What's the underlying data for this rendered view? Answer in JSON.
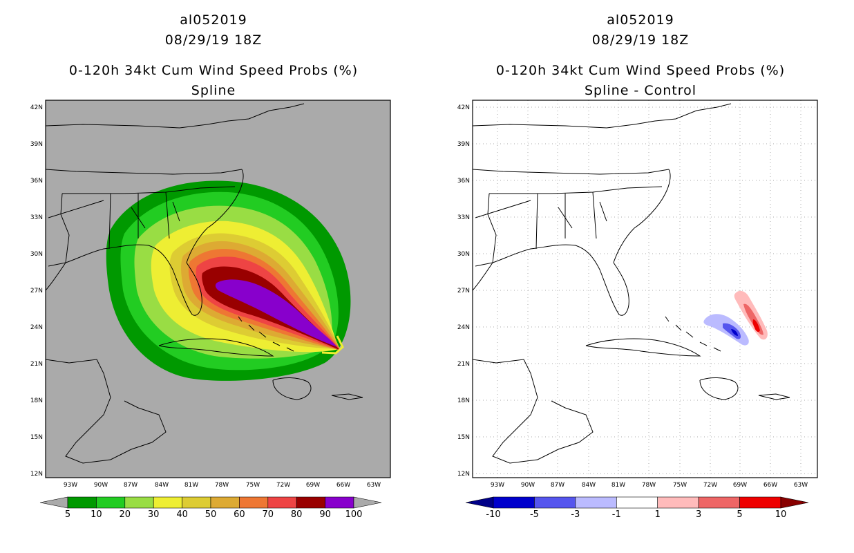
{
  "chart_data": [
    {
      "type": "heatmap",
      "storm_id": "al052019",
      "date": "08/29/19 18Z",
      "title": "0-120h 34kt Cum Wind Speed Probs (%)",
      "subtitle": "Spline",
      "background": "#aaaaaa",
      "lat_ticks": [
        "12N",
        "15N",
        "18N",
        "21N",
        "24N",
        "27N",
        "30N",
        "33N",
        "36N",
        "39N",
        "42N"
      ],
      "lon_ticks": [
        "93W",
        "90W",
        "87W",
        "84W",
        "81W",
        "78W",
        "75W",
        "72W",
        "69W",
        "66W",
        "63W"
      ],
      "xlim_lon": [
        -96.5,
        -61.5
      ],
      "ylim_lat": [
        11.5,
        42.5
      ],
      "levels": [
        5,
        10,
        20,
        30,
        40,
        50,
        60,
        70,
        80,
        90,
        100
      ],
      "level_colors": [
        "#009900",
        "#22cc22",
        "#99dd44",
        "#eeee33",
        "#ddcc33",
        "#ddaa33",
        "#ee7733",
        "#ee4444",
        "#990000",
        "#8800cc"
      ],
      "end_colors": [
        "#aaaaaa",
        "#aaaaaa"
      ],
      "colorbar_labels": [
        "5",
        "10",
        "20",
        "30",
        "40",
        "50",
        "60",
        "70",
        "80",
        "90",
        "100"
      ]
    },
    {
      "type": "heatmap",
      "storm_id": "al052019",
      "date": "08/29/19 18Z",
      "title": "0-120h 34kt Cum Wind Speed Probs (%)",
      "subtitle": "Spline - Control",
      "background": "#ffffff",
      "lat_ticks": [
        "12N",
        "15N",
        "18N",
        "21N",
        "24N",
        "27N",
        "30N",
        "33N",
        "36N",
        "39N",
        "42N"
      ],
      "lon_ticks": [
        "93W",
        "90W",
        "87W",
        "84W",
        "81W",
        "78W",
        "75W",
        "72W",
        "69W",
        "66W",
        "63W"
      ],
      "xlim_lon": [
        -96.5,
        -61.5
      ],
      "ylim_lat": [
        11.5,
        42.5
      ],
      "levels": [
        -10,
        -5,
        -3,
        -1,
        1,
        3,
        5,
        10
      ],
      "level_colors": [
        "#0000cc",
        "#5555ee",
        "#bbbbff",
        "#ffffff",
        "#ffbbbb",
        "#ee6666",
        "#ee0000"
      ],
      "end_colors": [
        "#000088",
        "#880000"
      ],
      "colorbar_labels": [
        "-10",
        "-5",
        "-3",
        "-1",
        "1",
        "3",
        "5",
        "10"
      ]
    }
  ]
}
